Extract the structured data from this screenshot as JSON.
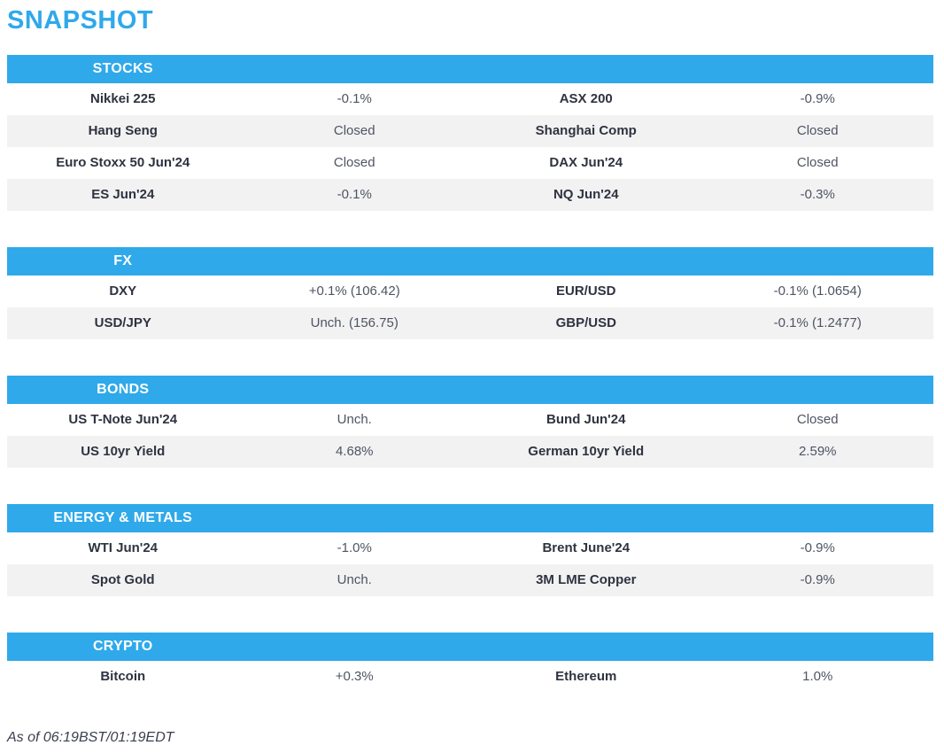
{
  "page": {
    "title": "SNAPSHOT",
    "footer": "As of 06:19BST/01:19EDT"
  },
  "colors": {
    "accent_blue": "#2FA9EA",
    "section_header_text": "#FFFFFF",
    "row_alt_bg": "#F2F2F3",
    "label_text": "#2F3340",
    "value_text": "#4F5462"
  },
  "sections": [
    {
      "title": "STOCKS",
      "rows": [
        [
          "Nikkei 225",
          "-0.1%",
          "ASX 200",
          "-0.9%"
        ],
        [
          "Hang Seng",
          "Closed",
          "Shanghai Comp",
          "Closed"
        ],
        [
          "Euro Stoxx 50 Jun'24",
          "Closed",
          "DAX Jun'24",
          "Closed"
        ],
        [
          "ES Jun'24",
          "-0.1%",
          "NQ Jun'24",
          "-0.3%"
        ]
      ]
    },
    {
      "title": "FX",
      "rows": [
        [
          "DXY",
          "+0.1% (106.42)",
          "EUR/USD",
          "-0.1% (1.0654)"
        ],
        [
          "USD/JPY",
          "Unch. (156.75)",
          "GBP/USD",
          "-0.1% (1.2477)"
        ]
      ]
    },
    {
      "title": "BONDS",
      "rows": [
        [
          "US T-Note Jun'24",
          "Unch.",
          "Bund Jun'24",
          "Closed"
        ],
        [
          "US 10yr Yield",
          "4.68%",
          "German 10yr Yield",
          "2.59%"
        ]
      ]
    },
    {
      "title": "ENERGY & METALS",
      "rows": [
        [
          "WTI Jun'24",
          "-1.0%",
          "Brent June'24",
          "-0.9%"
        ],
        [
          "Spot Gold",
          "Unch.",
          "3M LME Copper",
          "-0.9%"
        ]
      ]
    },
    {
      "title": "CRYPTO",
      "rows": [
        [
          "Bitcoin",
          "+0.3%",
          "Ethereum",
          "1.0%"
        ]
      ]
    }
  ]
}
